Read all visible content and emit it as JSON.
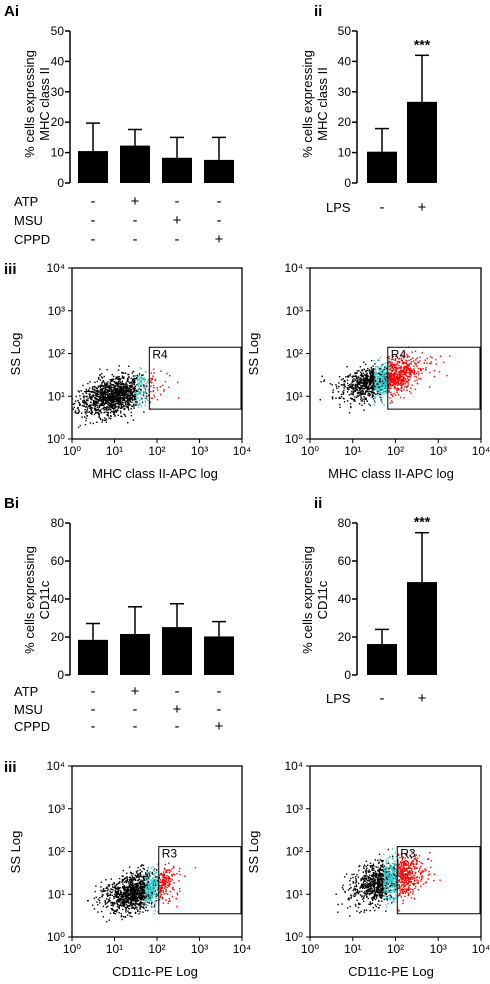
{
  "figure": {
    "A": {
      "panel_i": "Ai",
      "panel_ii": "ii",
      "panel_iii": "iii",
      "ylabel_1": "% cells expressing",
      "ylabel_2": "MHC class II",
      "row_labels": [
        "ATP",
        "MSU",
        "CPPD"
      ],
      "lps_label": "LPS",
      "significance": "***",
      "flow_xlabel": "MHC class II-APC log",
      "flow_ylabel": "SS Log",
      "gate_label": "R4"
    },
    "B": {
      "panel_i": "Bi",
      "panel_ii": "ii",
      "panel_iii": "iii",
      "ylabel_1": "% cells expressing",
      "ylabel_2": "CD11c",
      "row_labels": [
        "ATP",
        "MSU",
        "CPPD"
      ],
      "lps_label": "LPS",
      "significance": "***",
      "flow_xlabel": "CD11c-PE Log",
      "flow_ylabel": "SS Log",
      "gate_label": "R3"
    },
    "flow_ticks": [
      "10⁰",
      "10¹",
      "10²",
      "10³",
      "10⁴"
    ],
    "colors": {
      "bar": "#000000",
      "gated": "#ff0000",
      "mid": "#33cccc",
      "bulk": "#000000"
    }
  },
  "chart_data": [
    {
      "id": "Ai",
      "type": "bar",
      "categories": [
        "-/-/-",
        "ATP+",
        "MSU+",
        "CPPD+"
      ],
      "treatments": {
        "ATP": [
          "-",
          "+",
          "-",
          "-"
        ],
        "MSU": [
          "-",
          "-",
          "+",
          "-"
        ],
        "CPPD": [
          "-",
          "-",
          "-",
          "+"
        ]
      },
      "values": [
        10.5,
        12.3,
        8.3,
        7.6
      ],
      "errors": [
        9.2,
        5.3,
        6.7,
        7.4
      ],
      "ylim": [
        0,
        50
      ],
      "yticks": [
        0,
        10,
        20,
        30,
        40,
        50
      ],
      "ylabel": "% cells expressing MHC class II"
    },
    {
      "id": "Aii",
      "type": "bar",
      "categories": [
        "LPS -",
        "LPS +"
      ],
      "treatments": {
        "LPS": [
          "-",
          "+"
        ]
      },
      "values": [
        10.3,
        26.7
      ],
      "errors": [
        7.6,
        15.3
      ],
      "significance": [
        null,
        "***"
      ],
      "ylim": [
        0,
        50
      ],
      "yticks": [
        0,
        10,
        20,
        30,
        40,
        50
      ],
      "ylabel": "% cells expressing MHC class II"
    },
    {
      "id": "Aiii-left",
      "type": "scatter",
      "scale": "log",
      "xlim": [
        1,
        10000
      ],
      "ylim": [
        1,
        10000
      ],
      "xlabel": "MHC class II-APC log",
      "ylabel": "SS Log",
      "gate": {
        "name": "R4",
        "x": [
          66,
          10000
        ],
        "y": [
          5,
          140
        ]
      },
      "population": {
        "center": [
          10,
          10.5
        ],
        "spread": [
          0.42,
          0.22
        ],
        "gated_fraction": "low"
      }
    },
    {
      "id": "Aiii-right",
      "type": "scatter",
      "scale": "log",
      "xlim": [
        1,
        10000
      ],
      "ylim": [
        1,
        10000
      ],
      "xlabel": "MHC class II-APC log",
      "ylabel": "SS Log",
      "gate": {
        "name": "R4",
        "x": [
          66,
          10000
        ],
        "y": [
          5,
          140
        ]
      },
      "population": {
        "center": [
          45,
          25
        ],
        "spread": [
          0.45,
          0.2
        ],
        "gated_fraction": "high"
      }
    },
    {
      "id": "Bi",
      "type": "bar",
      "categories": [
        "-/-/-",
        "ATP+",
        "MSU+",
        "CPPD+"
      ],
      "treatments": {
        "ATP": [
          "-",
          "+",
          "-",
          "-"
        ],
        "MSU": [
          "-",
          "-",
          "+",
          "-"
        ],
        "CPPD": [
          "-",
          "-",
          "-",
          "+"
        ]
      },
      "values": [
        18.5,
        21.6,
        25.2,
        20.3
      ],
      "errors": [
        8.6,
        14.3,
        12.3,
        7.8
      ],
      "ylim": [
        0,
        80
      ],
      "yticks": [
        0,
        20,
        40,
        60,
        80
      ],
      "ylabel": "% cells expressing CD11c"
    },
    {
      "id": "Bii",
      "type": "bar",
      "categories": [
        "LPS -",
        "LPS +"
      ],
      "treatments": {
        "LPS": [
          "-",
          "+"
        ]
      },
      "values": [
        16.3,
        48.9
      ],
      "errors": [
        7.7,
        26.0
      ],
      "significance": [
        null,
        "***"
      ],
      "ylim": [
        0,
        80
      ],
      "yticks": [
        0,
        20,
        40,
        60,
        80
      ],
      "ylabel": "% cells expressing CD11c"
    },
    {
      "id": "Biii-left",
      "type": "scatter",
      "scale": "log",
      "xlim": [
        1,
        10000
      ],
      "ylim": [
        1,
        10000
      ],
      "xlabel": "CD11c-PE Log",
      "ylabel": "SS Log",
      "gate": {
        "name": "R3",
        "x": [
          110,
          10000
        ],
        "y": [
          3.5,
          130
        ]
      },
      "population": {
        "center": [
          35,
          12
        ],
        "spread": [
          0.4,
          0.22
        ],
        "gated_fraction": "low"
      }
    },
    {
      "id": "Biii-right",
      "type": "scatter",
      "scale": "log",
      "xlim": [
        1,
        10000
      ],
      "ylim": [
        1,
        10000
      ],
      "xlabel": "CD11c-PE Log",
      "ylabel": "SS Log",
      "gate": {
        "name": "R3",
        "x": [
          110,
          10000
        ],
        "y": [
          3.5,
          130
        ]
      },
      "population": {
        "center": [
          60,
          22
        ],
        "spread": [
          0.4,
          0.24
        ],
        "gated_fraction": "medium"
      }
    }
  ]
}
